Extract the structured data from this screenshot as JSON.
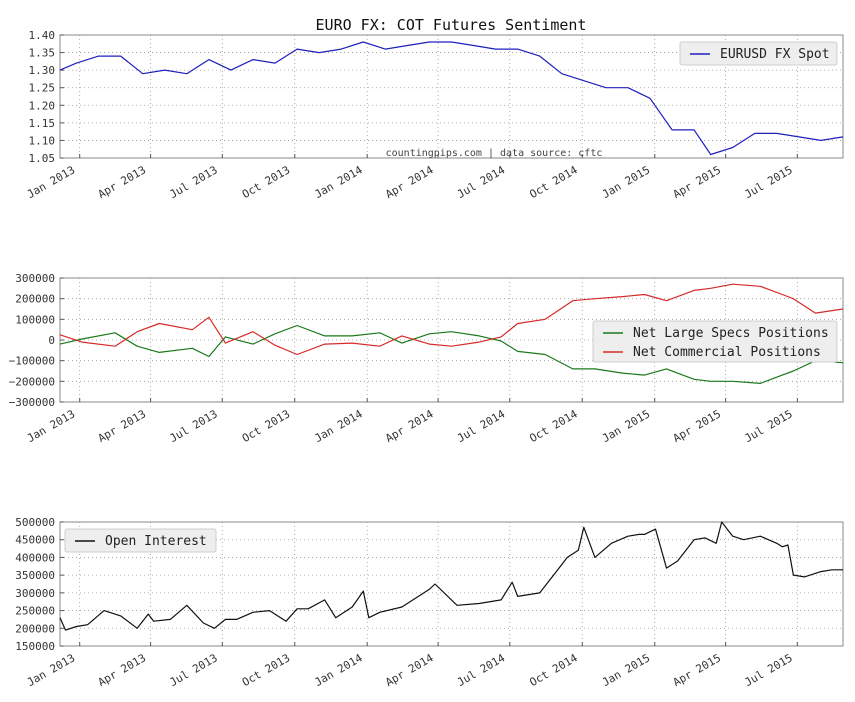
{
  "title": "EURO FX: COT Futures Sentiment",
  "date_ticks": [
    "Jan 2013",
    "Apr 2013",
    "Jul 2013",
    "Oct 2013",
    "Jan 2014",
    "Apr 2014",
    "Jul 2014",
    "Oct 2014",
    "Jan 2015",
    "Apr 2015",
    "Jul 2015"
  ],
  "colors": {
    "spot": "#1f1fbf",
    "specs": "#1a7a1a",
    "commercial": "#d62a2a",
    "oi": "#111111",
    "grid": "#999999",
    "axes": "#888888"
  },
  "chart_data": [
    {
      "type": "line",
      "title": "EURO FX: COT Futures Sentiment",
      "annotation": "countingpips.com | data source: cftc",
      "legend_position": "top-right",
      "grid": true,
      "x_range": [
        "2012-12-07",
        "2015-08-28"
      ],
      "ylim": [
        1.05,
        1.4
      ],
      "yticks": [
        "1.05",
        "1.10",
        "1.15",
        "1.20",
        "1.25",
        "1.30",
        "1.35",
        "1.40"
      ],
      "series": [
        {
          "name": "EURUSD FX Spot",
          "x": [
            "2012-12-07",
            "2012-12-28",
            "2013-01-25",
            "2013-02-22",
            "2013-03-22",
            "2013-04-19",
            "2013-05-17",
            "2013-06-14",
            "2013-07-12",
            "2013-08-09",
            "2013-09-06",
            "2013-10-04",
            "2013-11-01",
            "2013-11-29",
            "2013-12-27",
            "2014-01-24",
            "2014-02-21",
            "2014-03-21",
            "2014-04-18",
            "2014-05-16",
            "2014-06-13",
            "2014-07-11",
            "2014-08-08",
            "2014-09-05",
            "2014-10-03",
            "2014-10-31",
            "2014-11-28",
            "2014-12-26",
            "2015-01-23",
            "2015-02-20",
            "2015-03-13",
            "2015-04-10",
            "2015-05-08",
            "2015-06-05",
            "2015-07-03",
            "2015-07-31",
            "2015-08-28"
          ],
          "values": [
            1.3,
            1.32,
            1.34,
            1.34,
            1.29,
            1.3,
            1.29,
            1.33,
            1.3,
            1.33,
            1.32,
            1.36,
            1.35,
            1.36,
            1.38,
            1.36,
            1.37,
            1.38,
            1.38,
            1.37,
            1.36,
            1.36,
            1.34,
            1.29,
            1.27,
            1.25,
            1.25,
            1.22,
            1.13,
            1.13,
            1.06,
            1.08,
            1.12,
            1.12,
            1.11,
            1.1,
            1.11
          ]
        }
      ]
    },
    {
      "type": "line",
      "legend_position": "center-right",
      "grid": true,
      "x_range": [
        "2012-12-07",
        "2015-08-28"
      ],
      "ylim": [
        -300000,
        300000
      ],
      "yticks": [
        "−300000",
        "−200000",
        "−100000",
        "0",
        "100000",
        "200000",
        "300000"
      ],
      "series": [
        {
          "name": "Net Large Specs Positions",
          "x": [
            "2012-12-07",
            "2013-01-04",
            "2013-02-15",
            "2013-03-15",
            "2013-04-12",
            "2013-05-24",
            "2013-06-14",
            "2013-07-05",
            "2013-08-09",
            "2013-09-06",
            "2013-10-04",
            "2013-11-08",
            "2013-12-13",
            "2014-01-17",
            "2014-02-14",
            "2014-03-21",
            "2014-04-18",
            "2014-05-23",
            "2014-06-20",
            "2014-07-11",
            "2014-08-15",
            "2014-09-19",
            "2014-10-17",
            "2014-11-21",
            "2014-12-19",
            "2015-01-16",
            "2015-02-20",
            "2015-03-13",
            "2015-04-10",
            "2015-05-15",
            "2015-06-12",
            "2015-06-26",
            "2015-07-24",
            "2015-08-28"
          ],
          "values": [
            -20000,
            5000,
            35000,
            -30000,
            -60000,
            -40000,
            -80000,
            15000,
            -20000,
            30000,
            70000,
            20000,
            20000,
            35000,
            -15000,
            30000,
            40000,
            20000,
            -5000,
            -55000,
            -70000,
            -140000,
            -140000,
            -160000,
            -170000,
            -140000,
            -190000,
            -200000,
            -200000,
            -210000,
            -170000,
            -150000,
            -100000,
            -110000
          ]
        },
        {
          "name": "Net Commercial Positions",
          "x": [
            "2012-12-07",
            "2013-01-04",
            "2013-02-15",
            "2013-03-15",
            "2013-04-12",
            "2013-05-24",
            "2013-06-14",
            "2013-07-05",
            "2013-08-09",
            "2013-09-06",
            "2013-10-04",
            "2013-11-08",
            "2013-12-13",
            "2014-01-17",
            "2014-02-14",
            "2014-03-21",
            "2014-04-18",
            "2014-05-23",
            "2014-06-20",
            "2014-07-11",
            "2014-08-15",
            "2014-09-19",
            "2014-10-17",
            "2014-11-21",
            "2014-12-19",
            "2015-01-16",
            "2015-02-20",
            "2015-03-13",
            "2015-04-10",
            "2015-05-15",
            "2015-06-12",
            "2015-06-26",
            "2015-07-24",
            "2015-08-28"
          ],
          "values": [
            25000,
            -10000,
            -30000,
            40000,
            80000,
            50000,
            110000,
            -15000,
            40000,
            -25000,
            -70000,
            -20000,
            -15000,
            -30000,
            20000,
            -20000,
            -30000,
            -10000,
            15000,
            80000,
            100000,
            190000,
            200000,
            210000,
            220000,
            190000,
            240000,
            250000,
            270000,
            260000,
            220000,
            200000,
            130000,
            150000
          ]
        }
      ]
    },
    {
      "type": "line",
      "legend_position": "top-left",
      "grid": true,
      "x_range": [
        "2012-12-07",
        "2015-08-28"
      ],
      "ylim": [
        150000,
        500000
      ],
      "yticks": [
        "150000",
        "200000",
        "250000",
        "300000",
        "350000",
        "400000",
        "450000",
        "500000"
      ],
      "series": [
        {
          "name": "Open Interest",
          "x": [
            "2012-12-07",
            "2012-12-14",
            "2012-12-28",
            "2013-01-11",
            "2013-02-01",
            "2013-02-22",
            "2013-03-15",
            "2013-03-29",
            "2013-04-05",
            "2013-04-26",
            "2013-05-17",
            "2013-06-07",
            "2013-06-21",
            "2013-07-05",
            "2013-07-19",
            "2013-08-09",
            "2013-08-30",
            "2013-09-20",
            "2013-10-04",
            "2013-10-18",
            "2013-11-08",
            "2013-11-22",
            "2013-12-13",
            "2013-12-27",
            "2014-01-03",
            "2014-01-17",
            "2014-02-14",
            "2014-03-07",
            "2014-03-21",
            "2014-03-28",
            "2014-04-25",
            "2014-05-23",
            "2014-06-20",
            "2014-07-04",
            "2014-07-11",
            "2014-08-08",
            "2014-08-29",
            "2014-09-12",
            "2014-09-26",
            "2014-10-03",
            "2014-10-17",
            "2014-11-07",
            "2014-11-28",
            "2014-12-12",
            "2014-12-19",
            "2015-01-02",
            "2015-01-16",
            "2015-01-30",
            "2015-02-20",
            "2015-03-06",
            "2015-03-20",
            "2015-03-27",
            "2015-04-10",
            "2015-04-24",
            "2015-05-15",
            "2015-06-05",
            "2015-06-12",
            "2015-06-19",
            "2015-06-26",
            "2015-07-10",
            "2015-07-31",
            "2015-08-14",
            "2015-08-28"
          ],
          "values": [
            230000,
            195000,
            205000,
            210000,
            250000,
            235000,
            200000,
            240000,
            220000,
            225000,
            265000,
            215000,
            200000,
            225000,
            225000,
            245000,
            250000,
            220000,
            255000,
            255000,
            280000,
            230000,
            260000,
            305000,
            230000,
            245000,
            260000,
            290000,
            310000,
            325000,
            265000,
            270000,
            280000,
            330000,
            290000,
            300000,
            360000,
            400000,
            420000,
            485000,
            400000,
            440000,
            460000,
            465000,
            465000,
            480000,
            370000,
            390000,
            450000,
            455000,
            440000,
            500000,
            460000,
            450000,
            460000,
            440000,
            430000,
            435000,
            350000,
            345000,
            360000,
            365000,
            365000
          ]
        }
      ]
    }
  ]
}
